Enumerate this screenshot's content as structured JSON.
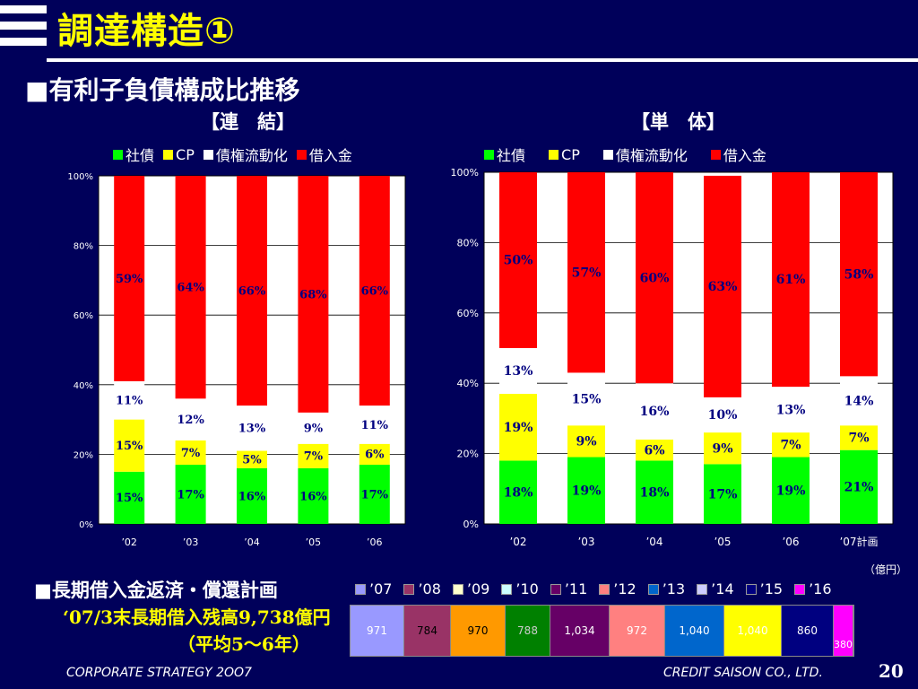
{
  "header": {
    "title": "調達構造①"
  },
  "section1": {
    "title": "■有利子負債構成比推移"
  },
  "section2": {
    "title": "■長期借入金返済・償還計画"
  },
  "colors": {
    "bond": "#00ff00",
    "cp": "#ffff00",
    "securitization": "#ffffff",
    "loans": "#ff0000",
    "label_text": "#000080",
    "background": "#00005a"
  },
  "chart_data": [
    {
      "type": "bar",
      "stacked": true,
      "title": "【連　結】",
      "legend": [
        "社債",
        "CP",
        "債権流動化",
        "借入金"
      ],
      "categories": [
        "’02",
        "’03",
        "’04",
        "’05",
        "’06"
      ],
      "yticks": [
        "0%",
        "20%",
        "40%",
        "60%",
        "80%",
        "100%"
      ],
      "ylim": [
        0,
        100
      ],
      "grid": true,
      "series": [
        {
          "name": "社債",
          "values": [
            15,
            17,
            16,
            16,
            17
          ],
          "labels": [
            "15%",
            "17%",
            "16%",
            "16%",
            "17%"
          ]
        },
        {
          "name": "CP",
          "values": [
            15,
            7,
            5,
            7,
            6
          ],
          "labels": [
            "15%",
            "7%",
            "5%",
            "7%",
            "6%"
          ]
        },
        {
          "name": "債権流動化",
          "values": [
            11,
            12,
            13,
            9,
            11
          ],
          "labels": [
            "11%",
            "12%",
            "13%",
            "9%",
            "11%"
          ]
        },
        {
          "name": "借入金",
          "values": [
            59,
            64,
            66,
            68,
            66
          ],
          "labels": [
            "59%",
            "64%",
            "66%",
            "68%",
            "66%"
          ]
        }
      ]
    },
    {
      "type": "bar",
      "stacked": true,
      "title": "【単　体】",
      "legend": [
        "社債",
        "CP",
        "債権流動化",
        "借入金"
      ],
      "categories": [
        "’02",
        "’03",
        "’04",
        "’05",
        "’06",
        "’07計画"
      ],
      "yticks": [
        "0%",
        "20%",
        "40%",
        "60%",
        "80%",
        "100%"
      ],
      "ylim": [
        0,
        100
      ],
      "grid": true,
      "series": [
        {
          "name": "社債",
          "values": [
            18,
            19,
            18,
            17,
            19,
            21
          ],
          "labels": [
            "18%",
            "19%",
            "18%",
            "17%",
            "19%",
            "21%"
          ]
        },
        {
          "name": "CP",
          "values": [
            19,
            9,
            6,
            9,
            7,
            7
          ],
          "labels": [
            "19%",
            "9%",
            "6%",
            "9%",
            "7%",
            "7%"
          ]
        },
        {
          "name": "債権流動化",
          "values": [
            13,
            15,
            16,
            10,
            13,
            14
          ],
          "labels": [
            "13%",
            "15%",
            "16%",
            "10%",
            "13%",
            "14%"
          ]
        },
        {
          "name": "借入金",
          "values": [
            50,
            57,
            60,
            63,
            61,
            58
          ],
          "labels": [
            "50%",
            "57%",
            "60%",
            "63%",
            "61%",
            "58%"
          ]
        }
      ]
    },
    {
      "type": "bar",
      "stacked": true,
      "orientation": "horizontal",
      "unit": "（億円）",
      "series": [
        {
          "name": "’07",
          "value": 971,
          "label": "971",
          "color": "#9999ff",
          "text_color": "#ffffff"
        },
        {
          "name": "’08",
          "value": 784,
          "label": "784",
          "color": "#993366",
          "text_color": "#000000"
        },
        {
          "name": "’09",
          "value": 970,
          "label": "970",
          "color": "#ff9900",
          "text_color": "#000000"
        },
        {
          "name": "’10",
          "value": 788,
          "label": "788",
          "color": "#008000",
          "text_color": "#cccccc"
        },
        {
          "name": "’11",
          "value": 1034,
          "label": "1,034",
          "color": "#660066",
          "text_color": "#ffffff"
        },
        {
          "name": "’12",
          "value": 972,
          "label": "972",
          "color": "#ff8080",
          "text_color": "#ffffff"
        },
        {
          "name": "’13",
          "value": 1040,
          "label": "1,040",
          "color": "#0066cc",
          "text_color": "#ffffff"
        },
        {
          "name": "’14",
          "value": 1040,
          "label": "1,040",
          "color": "#ffff00",
          "text_color": "#ffffff"
        },
        {
          "name": "’15",
          "value": 860,
          "label": "860",
          "color": "#000080",
          "text_color": "#ffffff"
        },
        {
          "name": "’16",
          "value": 380,
          "label": "380",
          "color": "#ff00ff",
          "text_color": "#ffffff"
        }
      ],
      "legend_swatches": [
        "#9999ff",
        "#993366",
        "#ffffcc",
        "#ccffff",
        "#660066",
        "#ff8080",
        "#0066cc",
        "#ccccff",
        "#000080",
        "#ff00ff"
      ]
    }
  ],
  "repayment": {
    "balance_text": "‘07/3末長期借入残高9,738億円",
    "average_text": "（平均5～6年）"
  },
  "footer": {
    "left": "CORPORATE  STRATEGY  2OO7",
    "right": "CREDIT  SAISON  CO.,  LTD.",
    "page": "20"
  }
}
